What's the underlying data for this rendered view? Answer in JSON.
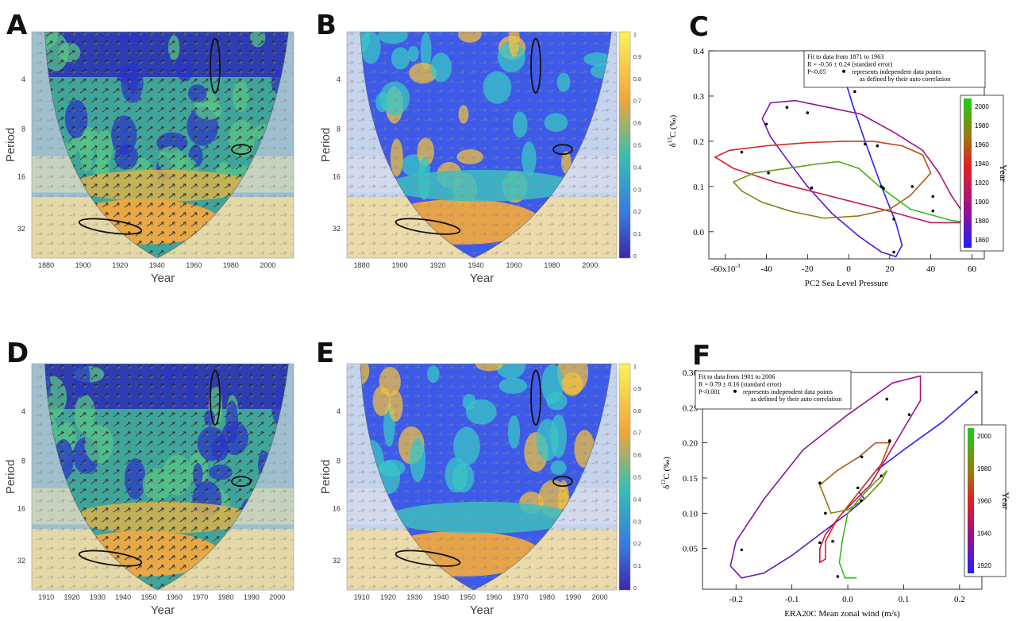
{
  "panels": {
    "A": {
      "letter": "A",
      "xlabel": "Year",
      "ylabel": "Period",
      "xticks": [
        "1880",
        "1900",
        "1920",
        "1940",
        "1960",
        "1980",
        "2000"
      ],
      "yticks": [
        "4",
        "8",
        "16",
        "32"
      ]
    },
    "B": {
      "letter": "B",
      "xlabel": "Year",
      "ylabel": "Period",
      "xticks": [
        "1880",
        "1900",
        "1920",
        "1940",
        "1960",
        "1980",
        "2000"
      ],
      "yticks": [
        "4",
        "8",
        "16",
        "32"
      ],
      "colorbar": [
        "1",
        "0.9",
        "0.8",
        "0.7",
        "0.6",
        "0.5",
        "0.4",
        "0.3",
        "0.2",
        "0.1",
        "0"
      ]
    },
    "D": {
      "letter": "D",
      "xlabel": "Year",
      "ylabel": "Period",
      "xticks": [
        "1910",
        "1920",
        "1930",
        "1940",
        "1950",
        "1960",
        "1970",
        "1980",
        "1990",
        "2000"
      ],
      "yticks": [
        "4",
        "8",
        "16",
        "32"
      ]
    },
    "E": {
      "letter": "E",
      "xlabel": "Year",
      "ylabel": "Period",
      "xticks": [
        "1910",
        "1920",
        "1930",
        "1940",
        "1950",
        "1960",
        "1970",
        "1980",
        "1990",
        "2000"
      ],
      "yticks": [
        "4",
        "8",
        "16",
        "32"
      ],
      "colorbar": [
        "1",
        "0.9",
        "0.8",
        "0.7",
        "0.6",
        "0.5",
        "0.4",
        "0.3",
        "0.2",
        "0.1",
        "0"
      ]
    }
  },
  "colors": {
    "power_low": "#2a2ad0",
    "power_mid": "#36c2c2",
    "power_high": "#f2b63a",
    "cb_top": "#f8f55a",
    "cb_mid": "#35b8b8",
    "cb_bot": "#3a2aa8",
    "year_old": "#2020ff",
    "year_mid": "#e02020",
    "year_new": "#18d018"
  },
  "chart_data": [
    {
      "panel": "C",
      "letter": "C",
      "type": "line",
      "xlabel": "PC2 Sea Level Pressure",
      "ylabel": "δ13C (‰)",
      "ylabel_main": "δ",
      "ylabel_sup": "13",
      "ylabel_rest": "C (‰)",
      "x_scale_label": "-60x10",
      "x_scale_exp": "-3",
      "xlim": [
        -68,
        66
      ],
      "ylim": [
        -0.06,
        0.4
      ],
      "xticks": [
        -60,
        -40,
        -20,
        0,
        20,
        40,
        60
      ],
      "xtick_labels": [
        "",
        "-40",
        "-20",
        "0",
        "20",
        "40",
        "60"
      ],
      "yticks": [
        0.0,
        0.1,
        0.2,
        0.3,
        0.4
      ],
      "ytick_labels": [
        "0.0",
        "0.1",
        "0.2",
        "0.3",
        "0.4"
      ],
      "legend_lines": [
        "Fit to data from 1871 to 1963",
        "R = -0.56 ± 0.24 (standard error)",
        "P<0.05",
        "represents independent data points",
        "as defined by their auto correlation"
      ],
      "colorbar_title": "Year",
      "colorbar_ticks": [
        "2000",
        "1980",
        "1960",
        "1940",
        "1920",
        "1900",
        "1880",
        "1860"
      ],
      "series": [
        {
          "x": [
            -3,
            2,
            8,
            16,
            23,
            26,
            23,
            16,
            5,
            -8,
            -20,
            -30,
            -38,
            -42,
            -38,
            -26,
            -10,
            6,
            22,
            36,
            44,
            50,
            56,
            54,
            40,
            16,
            -10,
            -36,
            -56,
            -65,
            -58,
            -40,
            -20,
            -2,
            12,
            26,
            36,
            40,
            30,
            20,
            5,
            -12,
            -28,
            -42,
            -52,
            -56,
            -46,
            -30,
            -15,
            -5,
            5,
            15,
            30,
            50,
            66
          ],
          "y": [
            0.355,
            0.28,
            0.2,
            0.1,
            0.02,
            -0.03,
            -0.055,
            -0.045,
            -0.01,
            0.04,
            0.1,
            0.16,
            0.21,
            0.25,
            0.285,
            0.29,
            0.275,
            0.26,
            0.22,
            0.18,
            0.13,
            0.08,
            0.04,
            0.02,
            0.02,
            0.05,
            0.08,
            0.11,
            0.14,
            0.165,
            0.18,
            0.19,
            0.197,
            0.2,
            0.2,
            0.19,
            0.17,
            0.13,
            0.08,
            0.05,
            0.035,
            0.03,
            0.045,
            0.065,
            0.09,
            0.11,
            0.13,
            0.14,
            0.15,
            0.155,
            0.14,
            0.1,
            0.05,
            0.025,
            0.015
          ],
          "year": [
            1860,
            1863,
            1866,
            1869,
            1872,
            1875,
            1878,
            1881,
            1884,
            1887,
            1890,
            1893,
            1896,
            1899,
            1902,
            1905,
            1908,
            1911,
            1914,
            1917,
            1920,
            1923,
            1926,
            1929,
            1932,
            1935,
            1938,
            1941,
            1944,
            1947,
            1950,
            1953,
            1956,
            1959,
            1962,
            1965,
            1968,
            1971,
            1974,
            1977,
            1980,
            1983,
            1986,
            1989,
            1992,
            1995,
            1998,
            2001,
            2004,
            2007,
            2010,
            2013,
            2016,
            2019,
            2022
          ]
        }
      ],
      "points": {
        "x": [
          3,
          8,
          16,
          22,
          -30,
          -40,
          -20,
          22,
          41,
          41,
          -52,
          -39,
          -18,
          17,
          31,
          14
        ],
        "y": [
          0.31,
          0.194,
          0.1,
          -0.045,
          0.275,
          0.238,
          0.263,
          0.028,
          0.046,
          0.078,
          0.176,
          0.13,
          0.097,
          0.096,
          0.1,
          0.19
        ]
      }
    },
    {
      "panel": "F",
      "letter": "F",
      "type": "line",
      "xlabel": "ERA20C Mean zonal wind (m/s)",
      "ylabel": "δ13C (‰)",
      "ylabel_main": "δ",
      "ylabel_sup": "13",
      "ylabel_rest": "C (‰)",
      "xlim": [
        -0.26,
        0.24
      ],
      "ylim": [
        -0.008,
        0.3
      ],
      "xticks": [
        -0.2,
        -0.1,
        0.0,
        0.1,
        0.2
      ],
      "xtick_labels": [
        "-0.2",
        "-0.1",
        "0.0",
        "0.1",
        "0.2"
      ],
      "yticks": [
        0.05,
        0.1,
        0.15,
        0.2,
        0.25,
        0.3
      ],
      "ytick_labels": [
        "0.05",
        "0.10",
        "0.15",
        "0.20",
        "0.25",
        "0.30"
      ],
      "legend_lines": [
        "Fit to data from 1901 to 2006",
        "R = 0.79 ± 0.16 (standard error)",
        "P<0.001",
        "represents independent data points",
        "as defined by their auto correlation"
      ],
      "colorbar_title": "Year",
      "colorbar_ticks": [
        "2000",
        "1980",
        "1960",
        "1940",
        "1920"
      ],
      "series": [
        {
          "x": [
            0.23,
            0.17,
            0.1,
            0.05,
            0.02,
            0.03,
            0.0,
            -0.05,
            -0.1,
            -0.15,
            -0.19,
            -0.21,
            -0.2,
            -0.15,
            -0.08,
            0.0,
            0.08,
            0.13,
            0.13,
            0.1,
            0.07,
            0.04,
            -0.01,
            -0.04,
            -0.05,
            -0.05,
            -0.04,
            -0.04,
            -0.04,
            -0.02,
            0.02,
            0.06,
            0.075,
            0.05,
            0.02,
            -0.02,
            -0.05,
            -0.04,
            -0.03,
            -0.03,
            0.0,
            0.03,
            0.06,
            0.07,
            0.05,
            0.02,
            0.0,
            -0.01,
            -0.015,
            -0.005,
            0.015
          ],
          "y": [
            0.272,
            0.23,
            0.19,
            0.16,
            0.13,
            0.12,
            0.1,
            0.07,
            0.04,
            0.015,
            0.008,
            0.025,
            0.06,
            0.12,
            0.19,
            0.24,
            0.285,
            0.295,
            0.26,
            0.22,
            0.18,
            0.14,
            0.1,
            0.07,
            0.05,
            0.03,
            0.035,
            0.05,
            0.06,
            0.09,
            0.13,
            0.17,
            0.2,
            0.2,
            0.18,
            0.16,
            0.14,
            0.12,
            0.1,
            0.1,
            0.105,
            0.12,
            0.145,
            0.16,
            0.145,
            0.12,
            0.1,
            0.06,
            0.03,
            0.008,
            0.008
          ],
          "year": [
            1905,
            1907,
            1909,
            1911,
            1913,
            1915,
            1917,
            1919,
            1921,
            1923,
            1925,
            1927,
            1929,
            1931,
            1933,
            1935,
            1937,
            1939,
            1941,
            1943,
            1945,
            1947,
            1949,
            1951,
            1953,
            1955,
            1957,
            1959,
            1961,
            1963,
            1965,
            1967,
            1969,
            1971,
            1973,
            1975,
            1977,
            1979,
            1981,
            1983,
            1985,
            1987,
            1989,
            1991,
            1993,
            1995,
            1997,
            1999,
            2001,
            2003,
            2005
          ]
        }
      ],
      "points": {
        "x": [
          0.23,
          0.018,
          0.024,
          0.075,
          -0.19,
          0.07,
          0.11,
          0.025,
          0.075,
          -0.05,
          -0.04,
          -0.05,
          -0.027,
          0.06,
          -0.018
        ],
        "y": [
          0.272,
          0.136,
          0.118,
          0.202,
          0.048,
          0.262,
          0.24,
          0.18,
          0.203,
          0.143,
          0.1,
          0.058,
          0.06,
          0.153,
          0.01
        ]
      }
    }
  ]
}
